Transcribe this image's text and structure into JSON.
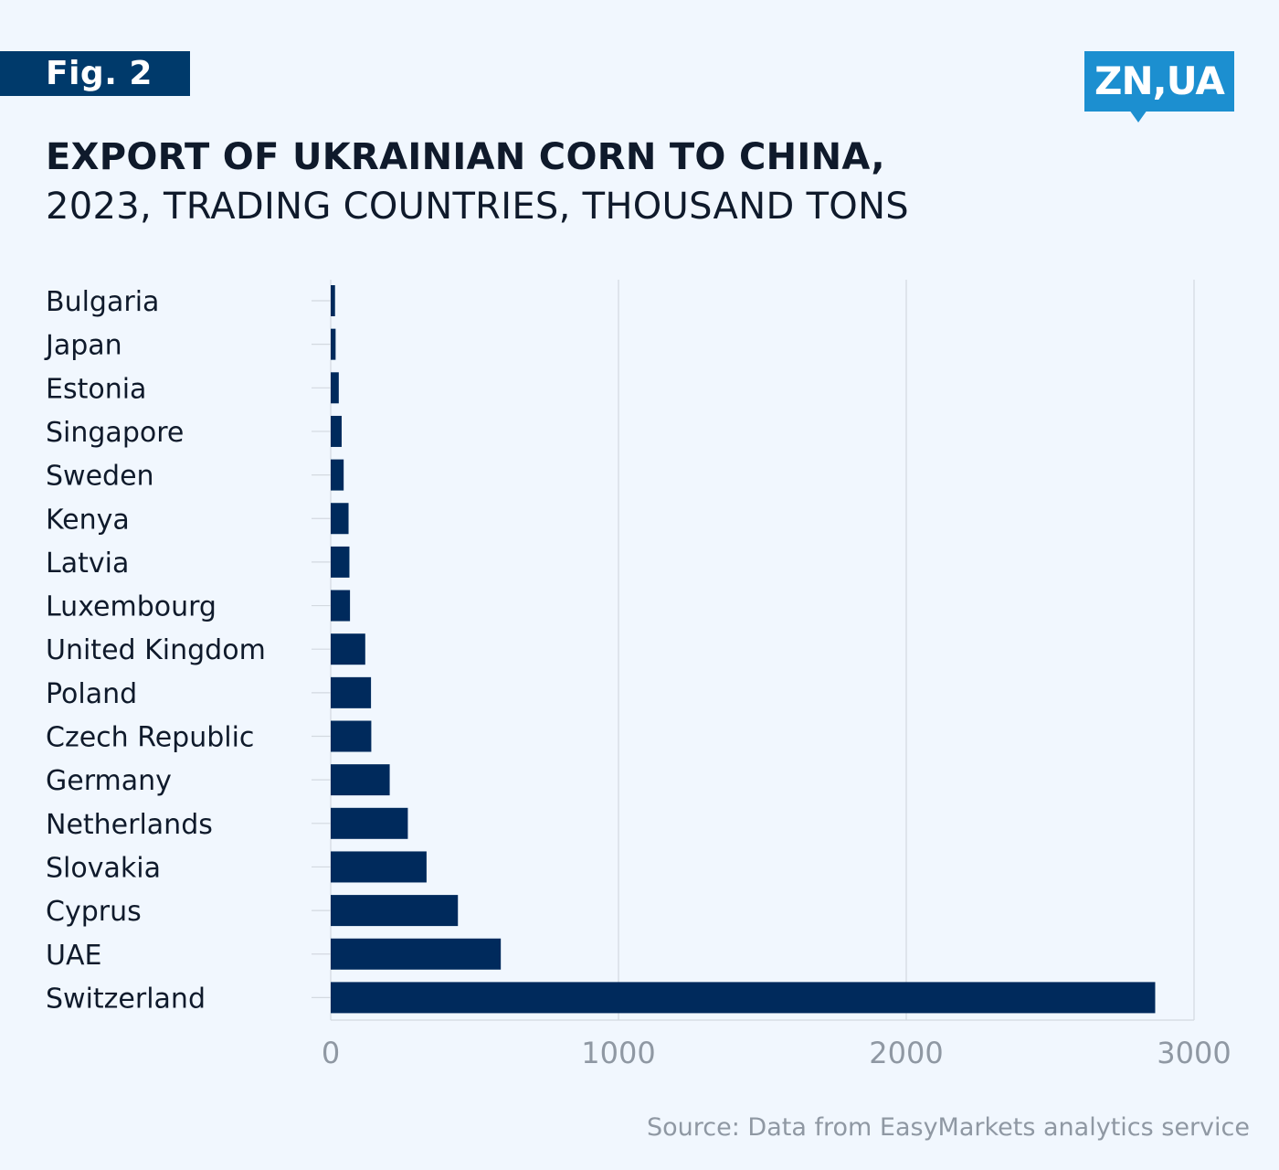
{
  "header": {
    "fig_label": "Fig. 2",
    "logo_text": "ZN,UA",
    "title": "EXPORT OF UKRAINIAN CORN TO CHINA,",
    "subtitle": "2023, TRADING COUNTRIES, THOUSAND TONS"
  },
  "footer": {
    "source": "Source: Data from EasyMarkets analytics service"
  },
  "colors": {
    "bar": "#002a5c",
    "grid": "#d3d9e0",
    "tick_label": "#8f98a3",
    "category_label": "#0f1a2b",
    "badge": "#003a6b",
    "logo": "#1c8fd0",
    "background": "#f1f7fe"
  },
  "chart_data": {
    "type": "bar",
    "orientation": "horizontal",
    "categories": [
      "Bulgaria",
      "Japan",
      "Estonia",
      "Singapore",
      "Sweden",
      "Kenya",
      "Latvia",
      "Luxembourg",
      "United Kingdom",
      "Poland",
      "Czech Republic",
      "Germany",
      "Netherlands",
      "Slovakia",
      "Cyprus",
      "UAE",
      "Switzerland"
    ],
    "values": [
      15,
      17,
      28,
      38,
      45,
      62,
      65,
      67,
      120,
      140,
      141,
      205,
      268,
      333,
      442,
      591,
      2865
    ],
    "xlim": [
      0,
      3000
    ],
    "xticks": [
      "0",
      "1000",
      "2000",
      "3000"
    ],
    "grid": "vertical",
    "legend": "none"
  }
}
